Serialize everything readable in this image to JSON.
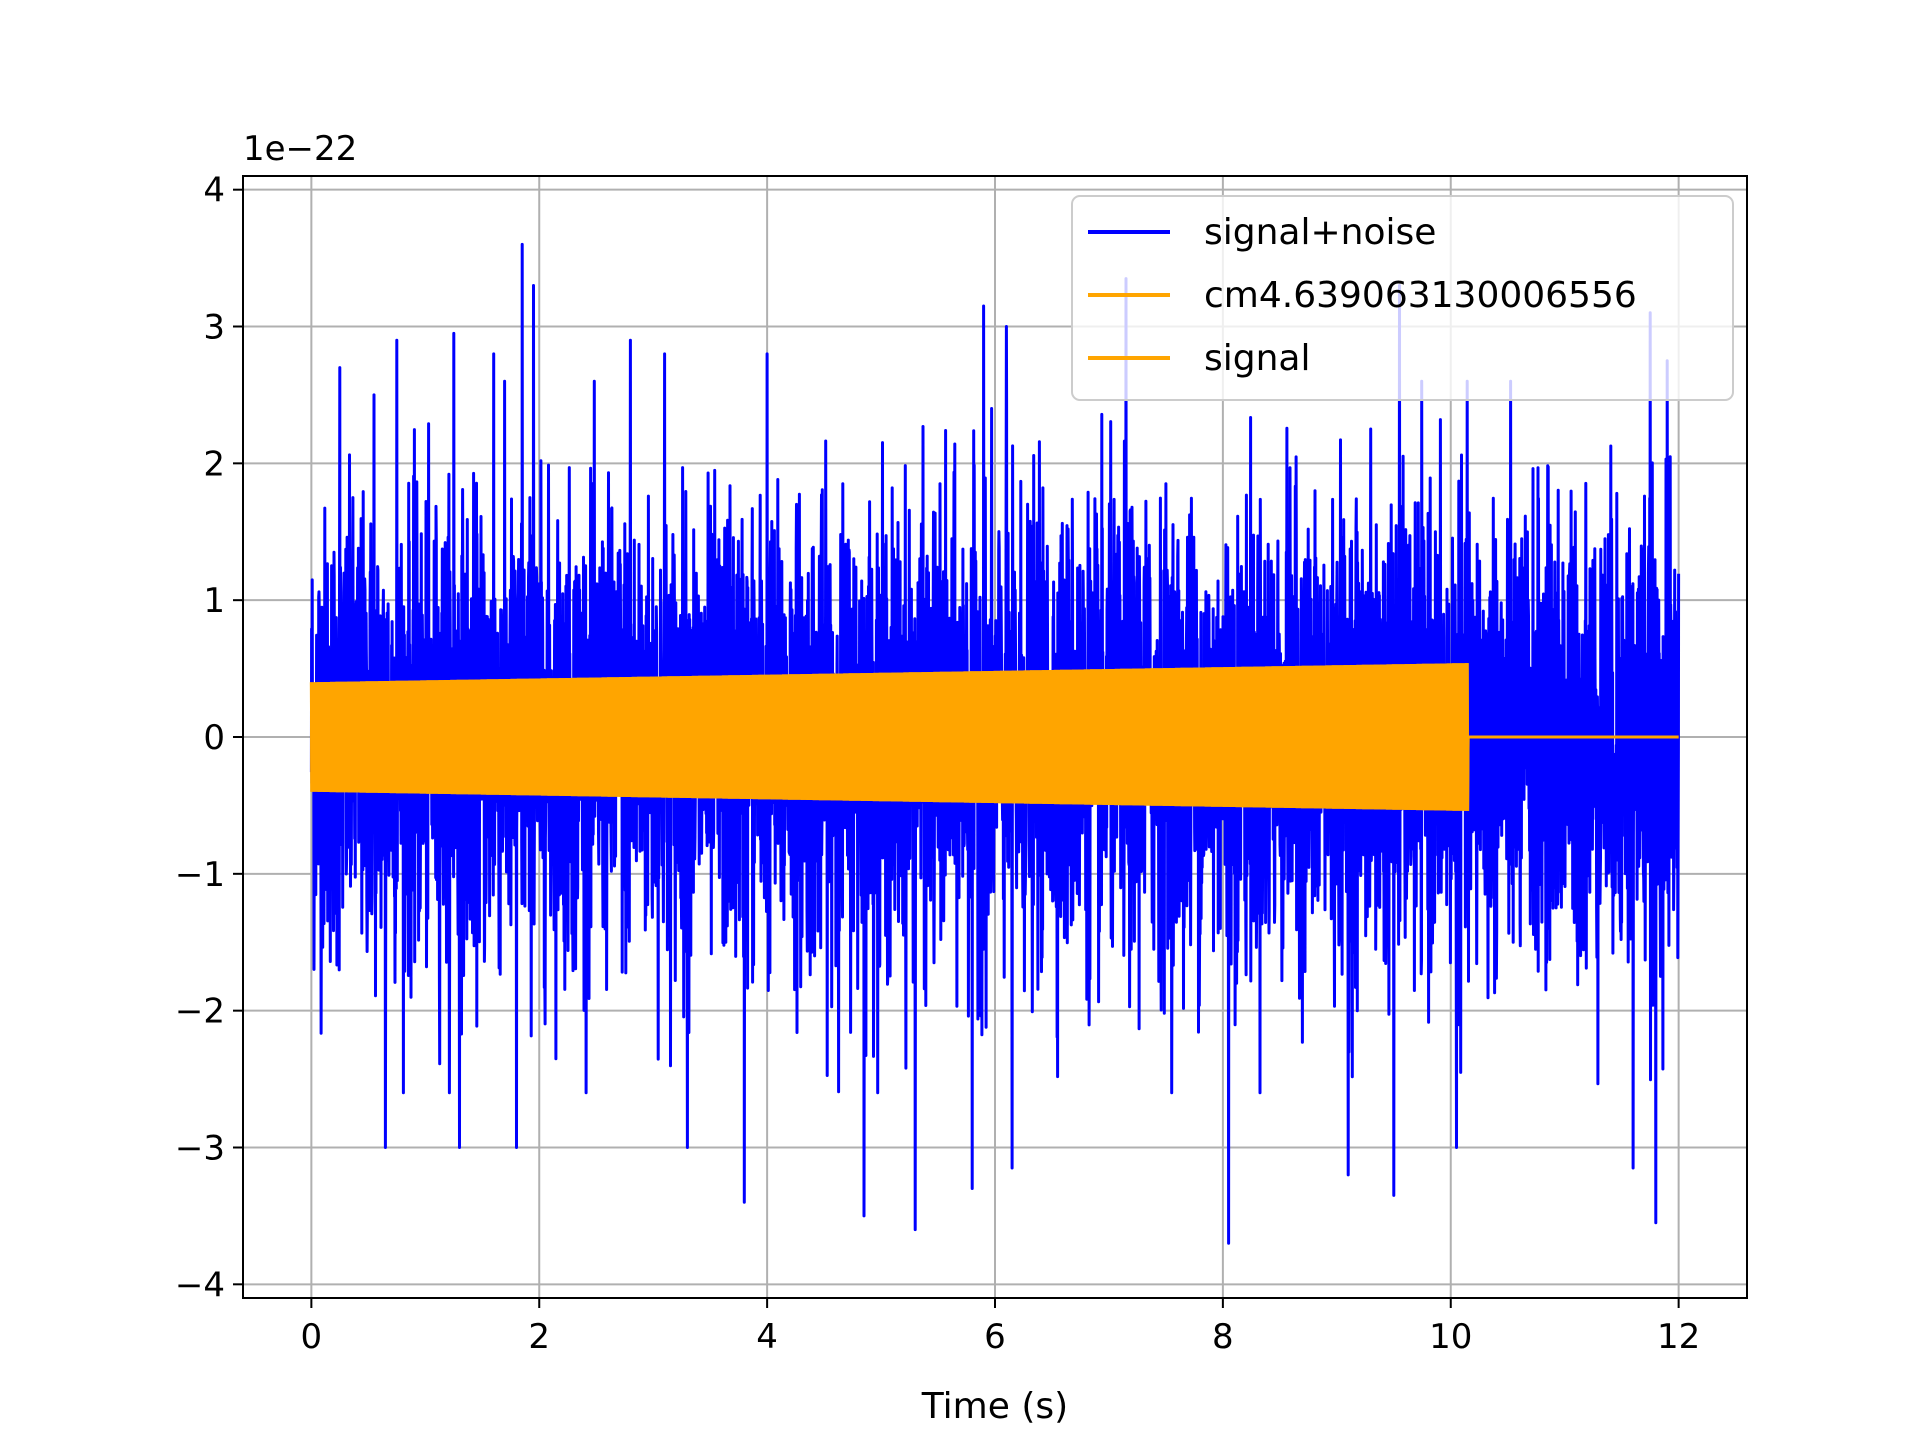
{
  "chart_data": {
    "type": "line",
    "title": "",
    "xlabel": "Time (s)",
    "ylabel": "",
    "y_offset_label": "1e−22",
    "xlim": [
      -0.6,
      12.6
    ],
    "ylim": [
      -4.1,
      4.1
    ],
    "x_ticks": [
      0,
      2,
      4,
      6,
      8,
      10,
      12
    ],
    "x_tick_labels": [
      "0",
      "2",
      "4",
      "6",
      "8",
      "10",
      "12"
    ],
    "y_ticks": [
      -4,
      -3,
      -2,
      -1,
      0,
      1,
      2,
      3,
      4
    ],
    "y_tick_labels": [
      "−4",
      "−3",
      "−2",
      "−1",
      "0",
      "1",
      "2",
      "3",
      "4"
    ],
    "grid": true,
    "legend_position": "top-right",
    "series": [
      {
        "name": "signal+noise",
        "color": "#0000ff",
        "x_range": [
          0,
          12
        ],
        "typical_amplitude": [
          -1.5,
          1.5
        ],
        "spikes": [
          {
            "x": 0.25,
            "y": 2.7
          },
          {
            "x": 0.55,
            "y": 2.5
          },
          {
            "x": 0.75,
            "y": 2.9
          },
          {
            "x": 1.25,
            "y": 2.95
          },
          {
            "x": 1.6,
            "y": 2.8
          },
          {
            "x": 1.85,
            "y": 3.6
          },
          {
            "x": 1.95,
            "y": 3.3
          },
          {
            "x": 2.8,
            "y": 2.9
          },
          {
            "x": 3.1,
            "y": 2.8
          },
          {
            "x": 4.0,
            "y": 2.8
          },
          {
            "x": 5.3,
            "y": 2.7
          },
          {
            "x": 5.9,
            "y": 3.15
          },
          {
            "x": 6.1,
            "y": 3.0
          },
          {
            "x": 7.15,
            "y": 3.35
          },
          {
            "x": 9.55,
            "y": 3.3
          },
          {
            "x": 11.75,
            "y": 3.1
          },
          {
            "x": 11.9,
            "y": 2.75
          },
          {
            "x": 0.65,
            "y": -3.0
          },
          {
            "x": 1.3,
            "y": -3.0
          },
          {
            "x": 1.8,
            "y": -3.0
          },
          {
            "x": 3.3,
            "y": -3.0
          },
          {
            "x": 3.8,
            "y": -3.4
          },
          {
            "x": 4.85,
            "y": -3.5
          },
          {
            "x": 5.3,
            "y": -3.6
          },
          {
            "x": 5.8,
            "y": -3.3
          },
          {
            "x": 6.15,
            "y": -3.15
          },
          {
            "x": 8.05,
            "y": -3.7
          },
          {
            "x": 9.1,
            "y": -3.2
          },
          {
            "x": 9.5,
            "y": -3.35
          },
          {
            "x": 10.05,
            "y": -3.0
          },
          {
            "x": 11.8,
            "y": -3.55
          },
          {
            "x": 11.6,
            "y": -3.15
          }
        ]
      },
      {
        "name": "cm4.639063130006556",
        "color": "#ffa500",
        "x_range": [
          0,
          12
        ],
        "envelope_x": [
          0,
          10.15,
          10.15,
          12
        ],
        "envelope_amplitude": [
          0.4,
          0.54,
          0,
          0
        ]
      },
      {
        "name": "signal",
        "color": "#ffa500",
        "x_range": [
          0,
          12
        ],
        "envelope_x": [
          0,
          10.15,
          10.15,
          12
        ],
        "envelope_amplitude": [
          0.4,
          0.54,
          0,
          0
        ]
      }
    ]
  }
}
